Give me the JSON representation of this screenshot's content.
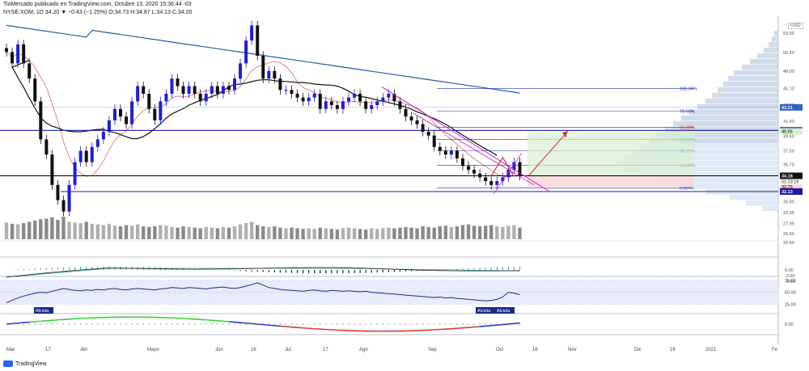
{
  "header": {
    "line1": "TioMercado publicado en TradingView.com, Octubre 13, 2020 15:36:44 -03",
    "line2": "NYSE:XOM, 1D 34.20 ▼ −0.43 (−1.25%) O:34.73 H:34.87 L:34.13 C:34.20"
  },
  "footer": {
    "brand": "TradingView"
  },
  "currency_badge": "USD",
  "colors": {
    "up": "#1e1ed2",
    "down": "#111111",
    "ma_long": "#1f5fa8",
    "ma_short": "#e07a7a",
    "fib": "#1e2fb8",
    "pitchfork": "#c21cc6",
    "arrow": "#d23a3a",
    "hline": "#1a1aa0"
  },
  "chart_data": [
    {
      "type": "candlestick",
      "symbol": "NYSE:XOM",
      "interval": "1D",
      "x_labels": [
        "Mar",
        "17",
        "Abr",
        "Mayo",
        "Jun",
        "16",
        "Jul",
        "17",
        "Ago",
        "Sep",
        "Oct",
        "16",
        "Nov",
        "Dic",
        "16",
        "2021",
        "Fe"
      ],
      "y_ticks": [
        25.4,
        26.6,
        27.95,
        29.35,
        30.8,
        32.35,
        33.95,
        35.7,
        37.5,
        39.4,
        41.4,
        43.5,
        45.7,
        48,
        50.4,
        53
      ],
      "y_tick_labels": [
        "25.40",
        "26.60",
        "27.95",
        "29.35",
        "30.80",
        "32.35",
        "33.95",
        "35.70",
        "37.50",
        "39.40",
        "41.40",
        "43.50",
        "45.70",
        "48.00",
        "50.40",
        "53.00"
      ],
      "ylim": [
        25.0,
        55.0
      ],
      "close": [
        50.5,
        49,
        51.5,
        49,
        47,
        44,
        39,
        37,
        33,
        31,
        29.5,
        33,
        36,
        37.5,
        36,
        38,
        39,
        40,
        41.5,
        43,
        42,
        41,
        44,
        46,
        45,
        43,
        41.5,
        44,
        45,
        47,
        46,
        45,
        46,
        45,
        44,
        45,
        46,
        45,
        46,
        45.5,
        47,
        49,
        52,
        54,
        50,
        47,
        48,
        47,
        45.5,
        45.5,
        45,
        44.5,
        44,
        44.5,
        45,
        43,
        44,
        43.5,
        43,
        44,
        44.5,
        45,
        44,
        43,
        43.5,
        44,
        44.5,
        45,
        44,
        43,
        42,
        41.5,
        41,
        40,
        39.5,
        38,
        37.5,
        37,
        37.5,
        36.5,
        35.5,
        35,
        34.5,
        34,
        33.5,
        33,
        33.5,
        34,
        35,
        36,
        34.2
      ],
      "levels": [
        {
          "label": "45.69",
          "value": 45.69,
          "kind": "fib",
          "fib": "100.00%"
        },
        {
          "label": "43.21",
          "value": 43.21,
          "kind": "price_badge"
        },
        {
          "label": "78.60%",
          "value": 42.7,
          "kind": "fib"
        },
        {
          "label": "40.18",
          "value": 40.18,
          "kind": "resistance"
        },
        {
          "label": "61.80%",
          "value": 40.6,
          "kind": "fib"
        },
        {
          "label": "40.05",
          "value": 40.05,
          "kind": "target_badge"
        },
        {
          "label": "50.00%",
          "value": 39.0,
          "kind": "fib"
        },
        {
          "label": "38.20%",
          "value": 37.5,
          "kind": "fib"
        },
        {
          "label": "23.60%",
          "value": 35.6,
          "kind": "fib"
        },
        {
          "label": "34.20",
          "value": 34.2,
          "kind": "last_price"
        },
        {
          "label": "34.18",
          "value": 34.18,
          "kind": "price_badge"
        },
        {
          "label": "32.75",
          "value": 32.75,
          "kind": "stop_badge"
        },
        {
          "label": "0.00%",
          "value": 32.6,
          "kind": "fib"
        },
        {
          "label": "32.13",
          "value": 32.13,
          "kind": "support"
        }
      ],
      "countdown": "01:23:16"
    },
    {
      "type": "bar",
      "name": "",
      "y_ticks": [],
      "values": [
        26,
        24,
        23,
        25,
        27,
        29,
        31,
        32,
        34,
        30,
        35,
        27,
        26,
        25,
        27,
        24,
        23,
        22,
        24,
        21,
        20,
        22,
        21,
        23,
        20,
        19,
        20,
        22,
        21,
        19,
        18,
        20,
        19,
        18,
        17,
        19,
        18,
        17,
        19,
        18,
        20,
        23,
        25,
        27,
        22,
        20,
        19,
        20,
        18,
        17,
        18,
        17,
        16,
        17,
        16,
        18,
        17,
        16,
        15,
        17,
        18,
        17,
        16,
        15,
        17,
        16,
        17,
        18,
        17,
        18,
        19,
        18,
        17,
        20,
        19,
        18,
        20,
        21,
        19,
        20,
        22,
        23,
        21,
        20,
        21,
        22,
        20,
        19,
        21,
        22,
        18
      ]
    },
    {
      "type": "line",
      "name": "",
      "ylim": [
        -5,
        2
      ],
      "y_ticks": [
        0,
        -2,
        -4
      ],
      "y_tick_labels": [
        "0.00",
        "-2.00",
        "-4.00"
      ]
    },
    {
      "type": "line",
      "name": "",
      "ylim": [
        5,
        80
      ],
      "y_ticks": [
        75,
        50,
        25
      ],
      "y_tick_labels": [
        "75.00",
        "50.00",
        "25.00"
      ],
      "annotations": [
        "Alcista",
        "Alcista",
        "Alcista"
      ],
      "values": [
        28,
        33,
        38,
        42,
        45,
        48,
        50,
        49,
        52,
        55,
        58,
        56,
        54,
        53,
        55,
        54,
        56,
        55,
        57,
        58,
        56,
        55,
        57,
        58,
        57,
        56,
        55,
        57,
        58,
        60,
        59,
        58,
        60,
        59,
        58,
        57,
        59,
        60,
        61,
        59,
        58,
        60,
        63,
        66,
        70,
        65,
        60,
        58,
        56,
        55,
        54,
        53,
        52,
        54,
        55,
        53,
        52,
        54,
        53,
        52,
        53,
        52,
        51,
        52,
        50,
        49,
        48,
        47,
        46,
        45,
        44,
        43,
        42,
        41,
        40,
        39,
        40,
        38,
        39,
        37,
        36,
        35,
        34,
        33,
        32,
        33,
        35,
        40,
        50,
        48,
        45
      ]
    },
    {
      "type": "line",
      "name": "",
      "ylim": [
        -4,
        4
      ],
      "y_ticks": [
        0
      ],
      "y_tick_labels": [
        "0.00"
      ]
    }
  ]
}
